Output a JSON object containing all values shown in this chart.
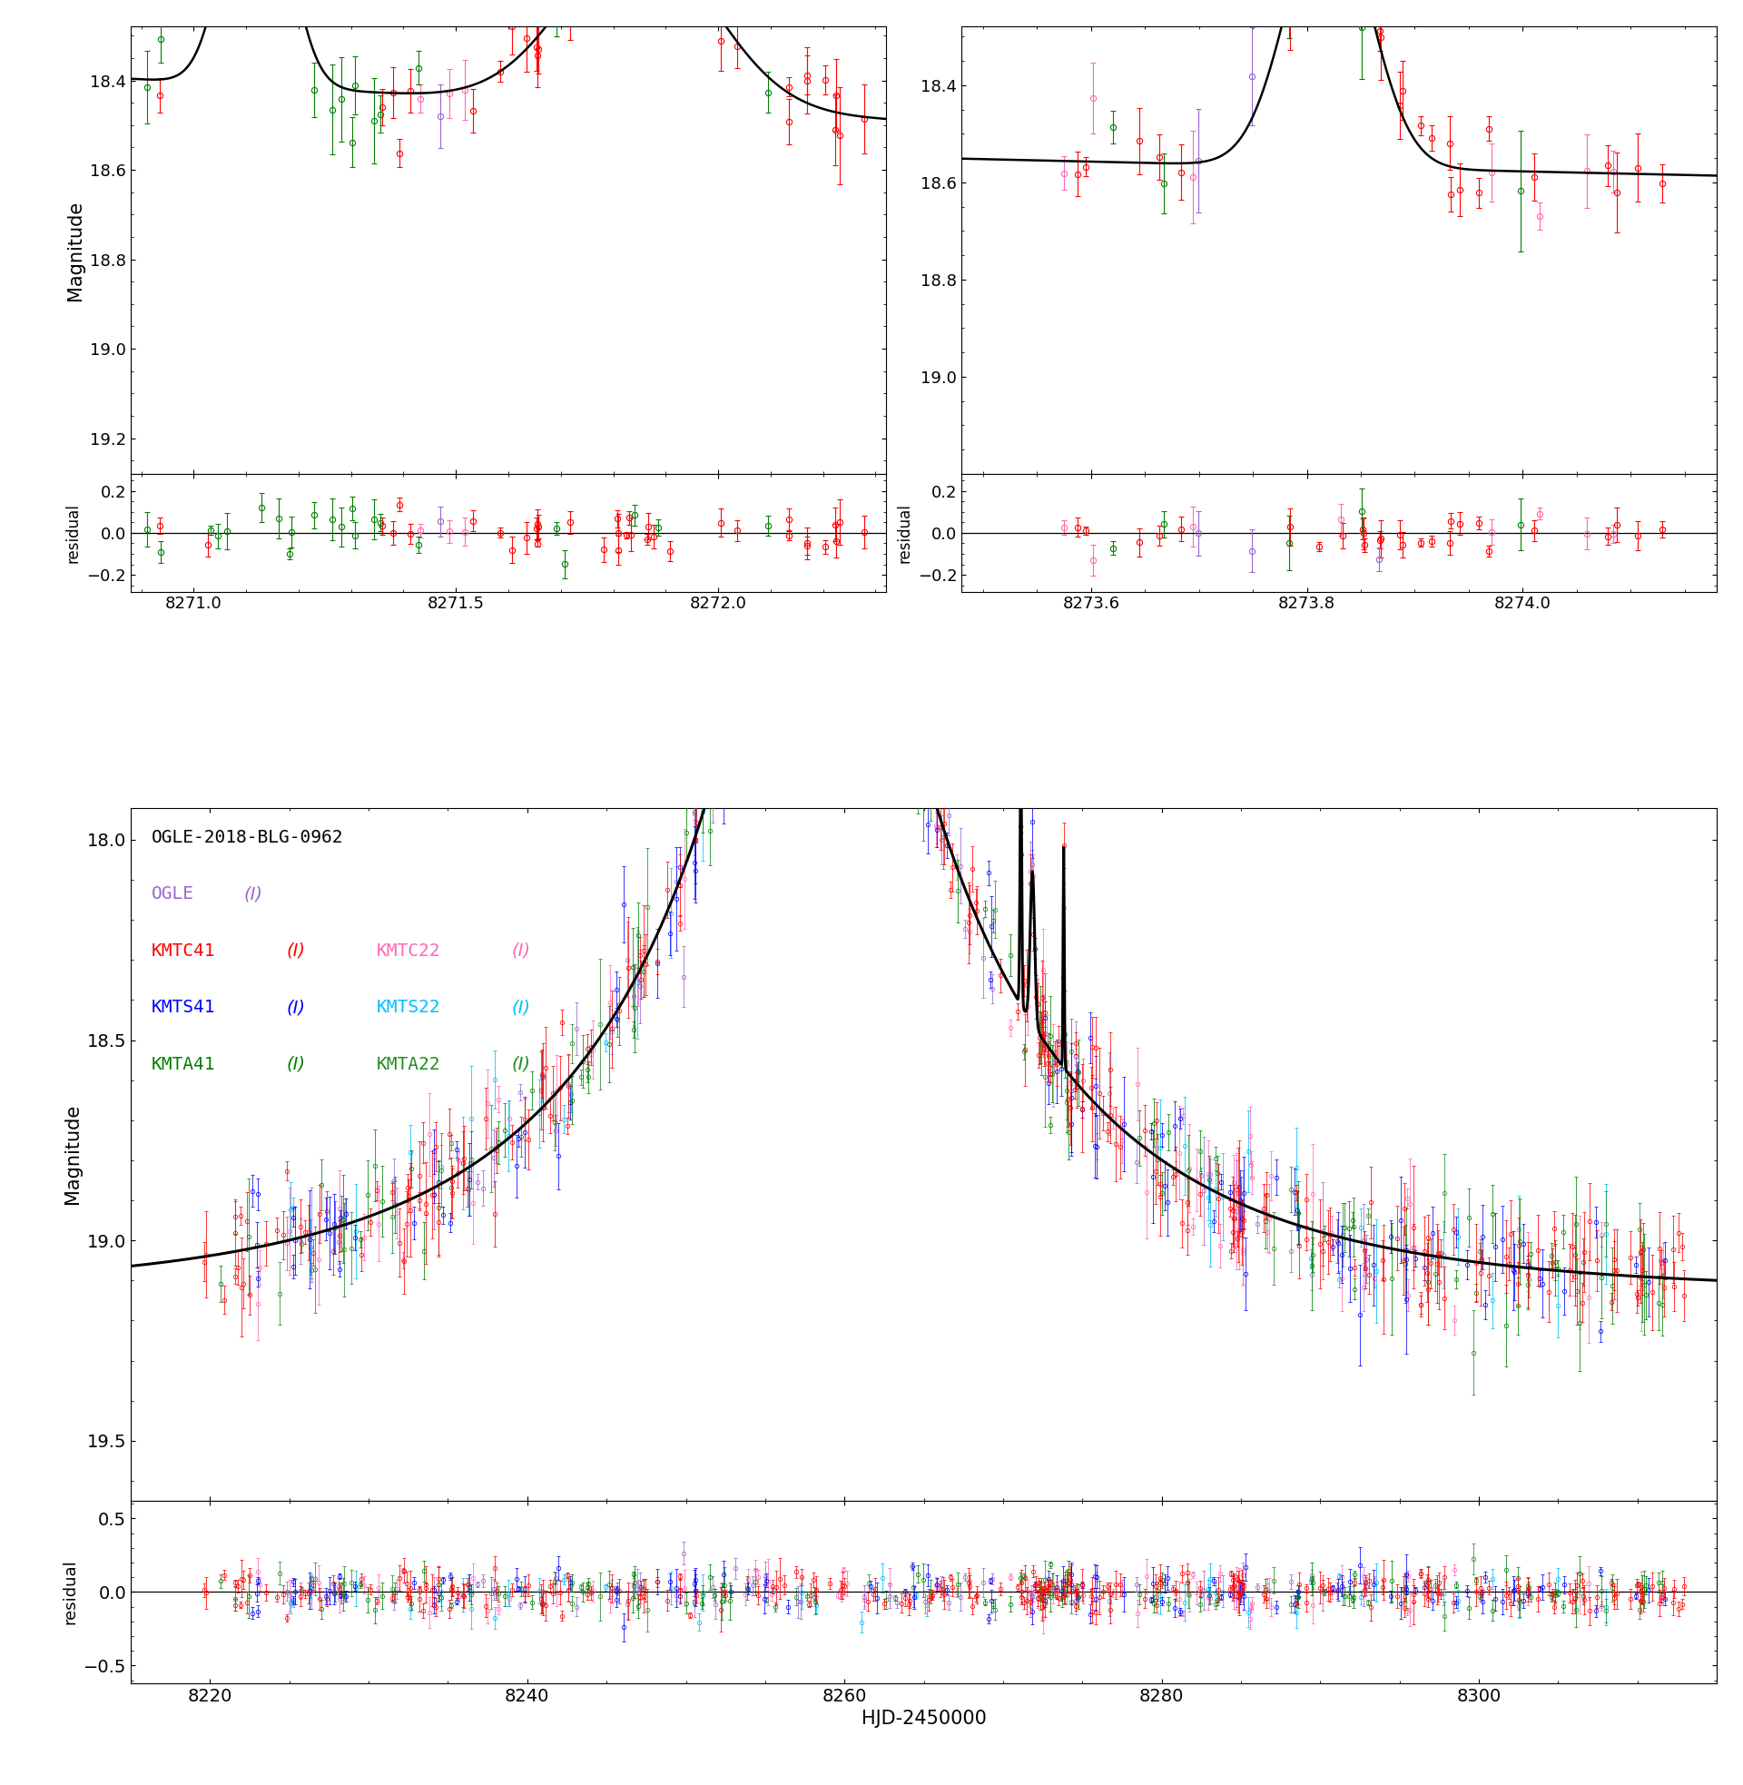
{
  "title": "OGLE-2018-BLG-0962",
  "xlabel": "HJD-2450000",
  "ylabel_main": "Magnitude",
  "ylabel_resid": "residual",
  "colors": {
    "ogle": "#9966CC",
    "kmtc41": "#FF0000",
    "kmtc22": "#FF69B4",
    "kmts41": "#0000FF",
    "kmts22": "#00BFFF",
    "kmta41": "#008000",
    "kmta22": "#228B22",
    "model": "#000000"
  },
  "panel1_xlim": [
    8270.88,
    8272.32
  ],
  "panel1_ylim": [
    19.28,
    18.28
  ],
  "panel1_resid_ylim": [
    -0.28,
    0.28
  ],
  "panel1_xticks": [
    8271.0,
    8271.5,
    8272.0
  ],
  "panel1_yticks": [
    18.4,
    18.6,
    18.8,
    19.0,
    19.2
  ],
  "panel2_xlim": [
    8273.48,
    8274.18
  ],
  "panel2_ylim": [
    19.2,
    18.28
  ],
  "panel2_resid_ylim": [
    -0.28,
    0.28
  ],
  "panel2_xticks": [
    8273.6,
    8273.8,
    8274.0
  ],
  "panel2_yticks": [
    18.4,
    18.6,
    18.8,
    19.0
  ],
  "main_xlim": [
    8215,
    8315
  ],
  "main_ylim": [
    19.65,
    17.92
  ],
  "main_yticks": [
    18.0,
    18.5,
    19.0,
    19.5
  ],
  "main_xticks": [
    8220,
    8240,
    8260,
    8280,
    8300
  ],
  "main_resid_ylim": [
    -0.62,
    0.62
  ],
  "main_resid_yticks": [
    -0.5,
    0.0,
    0.5
  ],
  "background_color": "#FFFFFF",
  "figure_facecolor": "#FFFFFF"
}
